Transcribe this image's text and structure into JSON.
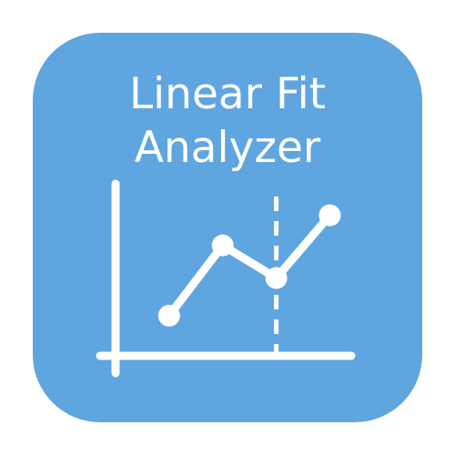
{
  "app_icon": {
    "title_lines": [
      "Linear Fit",
      "Analyzer"
    ],
    "background_color": "#5fa5e0",
    "foreground_color": "#ffffff",
    "glyph": "line-chart-icon"
  },
  "chart_data": {
    "type": "line",
    "title": "",
    "xlabel": "",
    "ylabel": "",
    "x": [
      1,
      2,
      3,
      4
    ],
    "series": [
      {
        "values": [
          1.0,
          3.8,
          2.5,
          5.0
        ]
      }
    ],
    "xlim": [
      0,
      4.4
    ],
    "ylim": [
      -0.6,
      6.4
    ],
    "vertical_marker_x": 3,
    "grid": false,
    "legend": "none"
  }
}
